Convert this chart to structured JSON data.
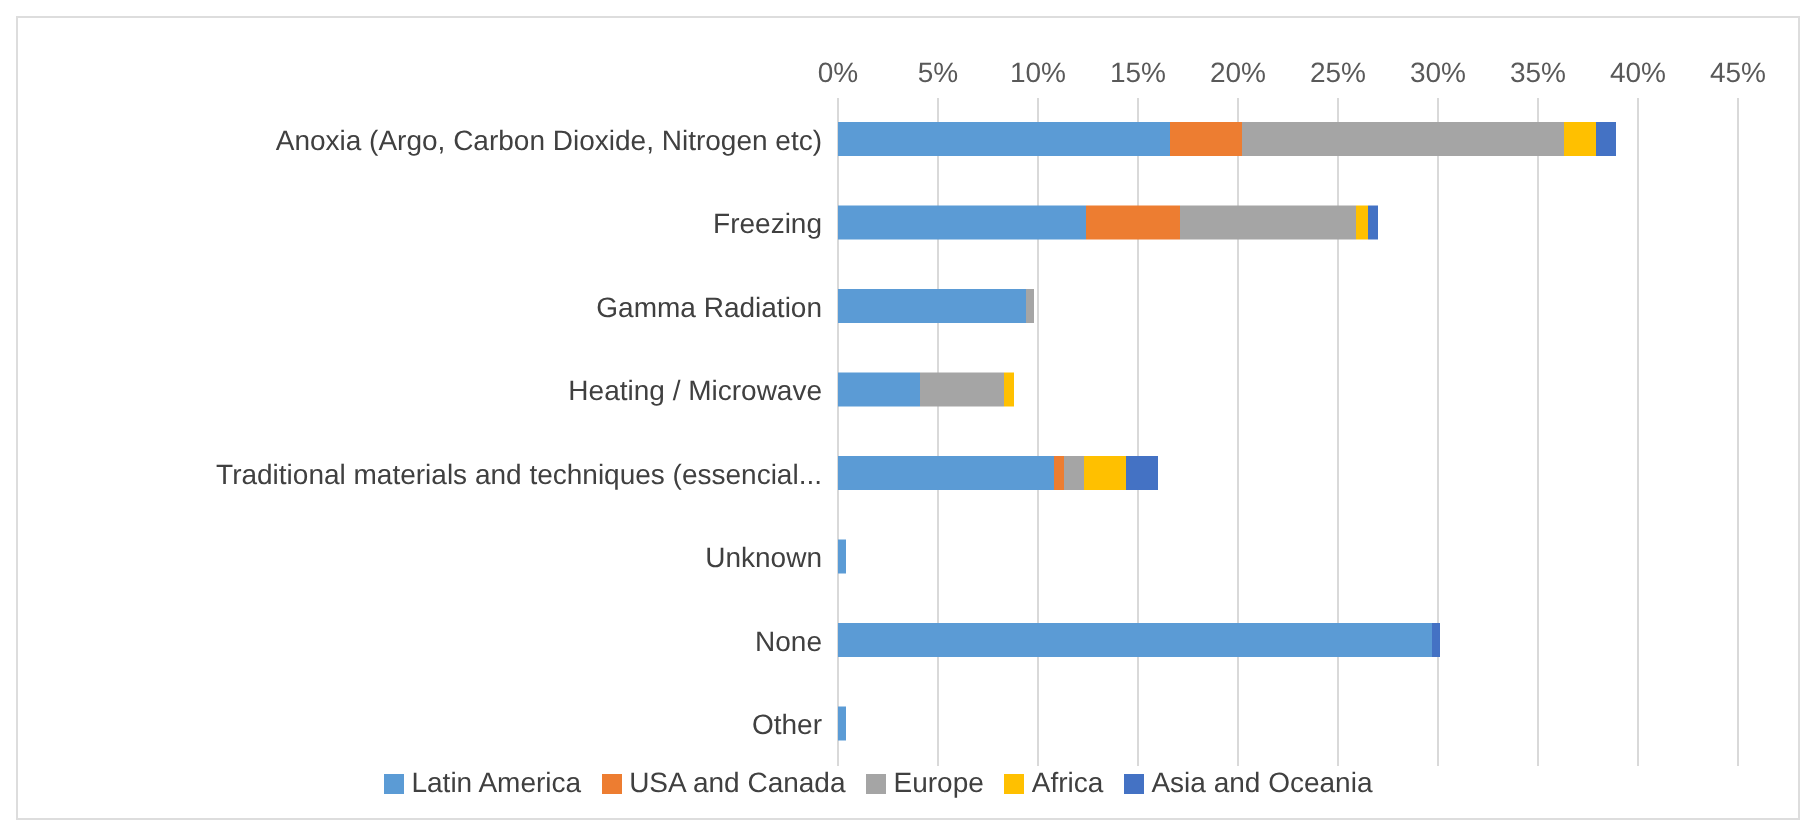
{
  "chart_data": {
    "type": "bar",
    "orientation": "horizontal",
    "stacked": true,
    "categories": [
      "Anoxia (Argo, Carbon Dioxide, Nitrogen etc)",
      "Freezing",
      "Gamma Radiation",
      "Heating / Microwave",
      "Traditional materials and techniques (essencial...",
      "Unknown",
      "None",
      "Other"
    ],
    "series": [
      {
        "name": "Latin America",
        "color": "#5b9bd5",
        "values": [
          16.6,
          12.4,
          9.4,
          4.1,
          10.8,
          0.4,
          29.7,
          0.4
        ]
      },
      {
        "name": "USA and Canada",
        "color": "#ed7d31",
        "values": [
          3.6,
          4.7,
          0,
          0,
          0.5,
          0,
          0,
          0
        ]
      },
      {
        "name": "Europe",
        "color": "#a5a5a5",
        "values": [
          16.1,
          8.8,
          0.4,
          4.2,
          1.0,
          0,
          0,
          0
        ]
      },
      {
        "name": "Africa",
        "color": "#ffc000",
        "values": [
          1.6,
          0.6,
          0,
          0.5,
          2.1,
          0,
          0,
          0
        ]
      },
      {
        "name": "Asia and Oceania",
        "color": "#4472c4",
        "values": [
          1.0,
          0.5,
          0,
          0,
          1.6,
          0,
          0.4,
          0
        ]
      }
    ],
    "xlim": [
      0,
      45
    ],
    "xticks": [
      {
        "value": 0,
        "label": "0%"
      },
      {
        "value": 5,
        "label": "5%"
      },
      {
        "value": 10,
        "label": "10%"
      },
      {
        "value": 15,
        "label": "15%"
      },
      {
        "value": 20,
        "label": "20%"
      },
      {
        "value": 25,
        "label": "25%"
      },
      {
        "value": 30,
        "label": "30%"
      },
      {
        "value": 35,
        "label": "35%"
      },
      {
        "value": 40,
        "label": "40%"
      },
      {
        "value": 45,
        "label": "45%"
      }
    ],
    "grid": "x",
    "legend": "bottom"
  }
}
